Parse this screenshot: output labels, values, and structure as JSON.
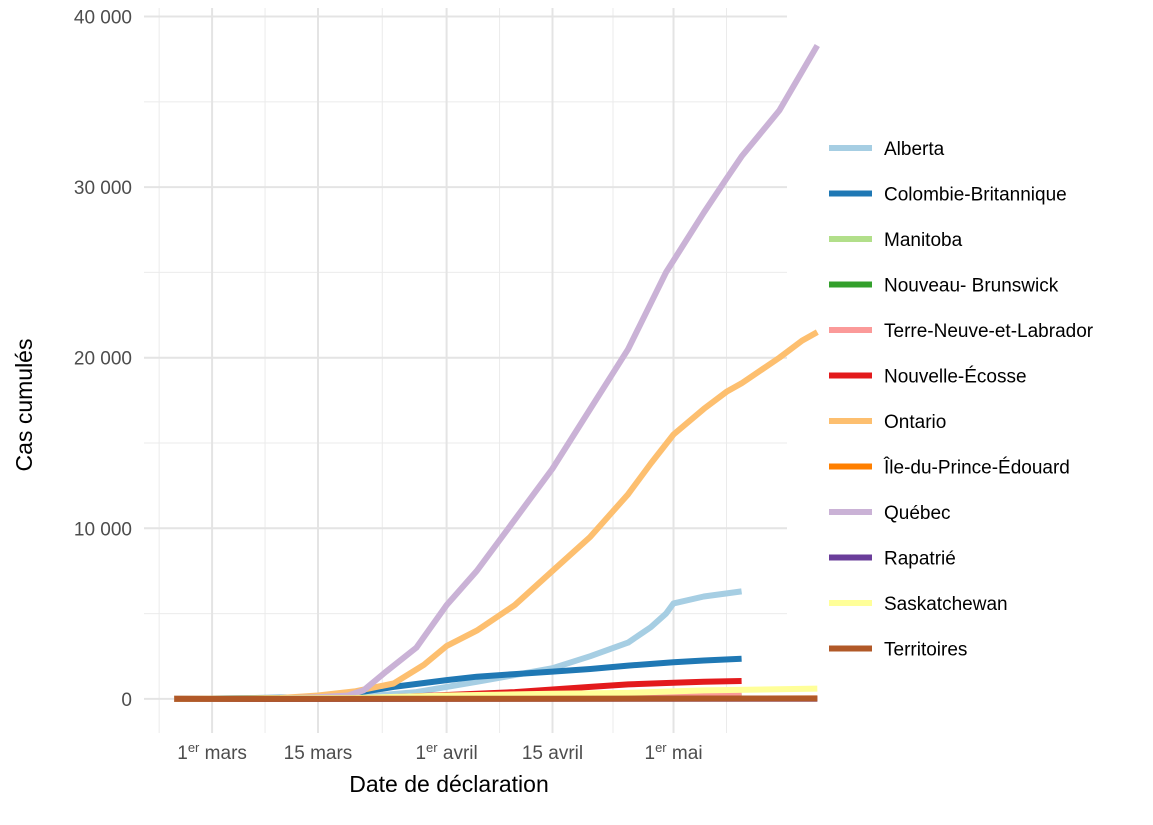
{
  "chart_data": {
    "type": "line",
    "title": "",
    "xlabel": "Date de déclaration",
    "ylabel": "Cas cumulés",
    "x_ticks": [
      {
        "date": "2020-03-01",
        "ordinal": "1",
        "sup": "er",
        "month": " mars"
      },
      {
        "date": "2020-03-15",
        "ordinal": "",
        "sup": "",
        "month": "15 mars"
      },
      {
        "date": "2020-04-01",
        "ordinal": "1",
        "sup": "er",
        "month": " avril"
      },
      {
        "date": "2020-04-15",
        "ordinal": "",
        "sup": "",
        "month": "15 avril"
      },
      {
        "date": "2020-05-01",
        "ordinal": "1",
        "sup": "er",
        "month": " mai"
      }
    ],
    "y_ticks": [
      {
        "value": 0,
        "label": "0"
      },
      {
        "value": 10000,
        "label": "10 000"
      },
      {
        "value": 20000,
        "label": "20 000"
      },
      {
        "value": 30000,
        "label": "30 000"
      },
      {
        "value": 40000,
        "label": "40 000"
      }
    ],
    "xlim": [
      "2020-02-21",
      "2020-05-16"
    ],
    "ylim": [
      -2000,
      40500
    ],
    "grid": true,
    "legend_position": "right",
    "series": [
      {
        "name": "Alberta",
        "color": "#a6cee3",
        "points": [
          [
            "2020-02-25",
            0
          ],
          [
            "2020-03-20",
            100
          ],
          [
            "2020-03-28",
            400
          ],
          [
            "2020-04-01",
            700
          ],
          [
            "2020-04-05",
            1000
          ],
          [
            "2020-04-10",
            1400
          ],
          [
            "2020-04-15",
            1800
          ],
          [
            "2020-04-20",
            2500
          ],
          [
            "2020-04-25",
            3300
          ],
          [
            "2020-04-28",
            4200
          ],
          [
            "2020-04-30",
            5000
          ],
          [
            "2020-05-01",
            5600
          ],
          [
            "2020-05-05",
            6000
          ],
          [
            "2020-05-10",
            6300
          ]
        ]
      },
      {
        "name": "Colombie-Britannique",
        "color": "#1f78b4",
        "points": [
          [
            "2020-02-25",
            0
          ],
          [
            "2020-03-15",
            100
          ],
          [
            "2020-03-20",
            350
          ],
          [
            "2020-03-25",
            700
          ],
          [
            "2020-04-01",
            1100
          ],
          [
            "2020-04-05",
            1300
          ],
          [
            "2020-04-10",
            1450
          ],
          [
            "2020-04-15",
            1600
          ],
          [
            "2020-04-20",
            1750
          ],
          [
            "2020-04-25",
            1950
          ],
          [
            "2020-05-01",
            2150
          ],
          [
            "2020-05-05",
            2250
          ],
          [
            "2020-05-10",
            2350
          ]
        ]
      },
      {
        "name": "Manitoba",
        "color": "#b2df8a",
        "points": [
          [
            "2020-02-25",
            0
          ],
          [
            "2020-03-25",
            30
          ],
          [
            "2020-04-05",
            200
          ],
          [
            "2020-04-15",
            250
          ],
          [
            "2020-05-01",
            280
          ],
          [
            "2020-05-10",
            290
          ]
        ]
      },
      {
        "name": "Nouveau- Brunswick",
        "color": "#33a02c",
        "points": [
          [
            "2020-02-25",
            0
          ],
          [
            "2020-03-25",
            30
          ],
          [
            "2020-04-05",
            100
          ],
          [
            "2020-04-15",
            115
          ],
          [
            "2020-05-10",
            120
          ]
        ]
      },
      {
        "name": "Terre-Neuve-et-Labrador",
        "color": "#fb9a99",
        "points": [
          [
            "2020-02-25",
            0
          ],
          [
            "2020-03-25",
            50
          ],
          [
            "2020-04-05",
            200
          ],
          [
            "2020-04-15",
            250
          ],
          [
            "2020-05-10",
            260
          ]
        ]
      },
      {
        "name": "Nouvelle-Écosse",
        "color": "#e31a1c",
        "points": [
          [
            "2020-02-25",
            0
          ],
          [
            "2020-03-20",
            20
          ],
          [
            "2020-03-28",
            150
          ],
          [
            "2020-04-05",
            300
          ],
          [
            "2020-04-10",
            400
          ],
          [
            "2020-04-15",
            550
          ],
          [
            "2020-04-20",
            700
          ],
          [
            "2020-04-25",
            850
          ],
          [
            "2020-05-01",
            950
          ],
          [
            "2020-05-05",
            1000
          ],
          [
            "2020-05-10",
            1050
          ]
        ]
      },
      {
        "name": "Ontario",
        "color": "#fdbf6f",
        "points": [
          [
            "2020-02-25",
            0
          ],
          [
            "2020-03-10",
            50
          ],
          [
            "2020-03-15",
            200
          ],
          [
            "2020-03-20",
            450
          ],
          [
            "2020-03-25",
            900
          ],
          [
            "2020-03-29",
            2000
          ],
          [
            "2020-04-01",
            3100
          ],
          [
            "2020-04-05",
            4000
          ],
          [
            "2020-04-10",
            5500
          ],
          [
            "2020-04-15",
            7500
          ],
          [
            "2020-04-20",
            9500
          ],
          [
            "2020-04-25",
            12000
          ],
          [
            "2020-04-28",
            13800
          ],
          [
            "2020-05-01",
            15500
          ],
          [
            "2020-05-05",
            17000
          ],
          [
            "2020-05-08",
            18000
          ],
          [
            "2020-05-10",
            18500
          ],
          [
            "2020-05-15",
            20000
          ],
          [
            "2020-05-18",
            21000
          ],
          [
            "2020-05-20",
            21500
          ]
        ]
      },
      {
        "name": "Île-du-Prince-Édouard",
        "color": "#ff7f00",
        "points": [
          [
            "2020-02-25",
            0
          ],
          [
            "2020-03-20",
            5
          ],
          [
            "2020-05-20",
            27
          ]
        ]
      },
      {
        "name": "Québec",
        "color": "#cab2d6",
        "points": [
          [
            "2020-02-25",
            0
          ],
          [
            "2020-03-10",
            20
          ],
          [
            "2020-03-15",
            100
          ],
          [
            "2020-03-19",
            200
          ],
          [
            "2020-03-21",
            500
          ],
          [
            "2020-03-24",
            1600
          ],
          [
            "2020-03-28",
            3000
          ],
          [
            "2020-04-01",
            5500
          ],
          [
            "2020-04-05",
            7500
          ],
          [
            "2020-04-10",
            10500
          ],
          [
            "2020-04-15",
            13500
          ],
          [
            "2020-04-20",
            17000
          ],
          [
            "2020-04-25",
            20500
          ],
          [
            "2020-04-30",
            25000
          ],
          [
            "2020-05-05",
            28500
          ],
          [
            "2020-05-08",
            30500
          ],
          [
            "2020-05-10",
            31800
          ],
          [
            "2020-05-15",
            34500
          ],
          [
            "2020-05-20",
            38300
          ]
        ]
      },
      {
        "name": "Rapatrié",
        "color": "#6a3d9a",
        "points": [
          [
            "2020-02-25",
            0
          ],
          [
            "2020-03-05",
            0
          ],
          [
            "2020-05-20",
            13
          ]
        ]
      },
      {
        "name": "Saskatchewan",
        "color": "#ffff99",
        "points": [
          [
            "2020-02-25",
            0
          ],
          [
            "2020-03-20",
            50
          ],
          [
            "2020-04-01",
            200
          ],
          [
            "2020-04-15",
            300
          ],
          [
            "2020-04-25",
            350
          ],
          [
            "2020-05-05",
            500
          ],
          [
            "2020-05-20",
            600
          ]
        ]
      },
      {
        "name": "Territoires",
        "color": "#b15928",
        "points": [
          [
            "2020-02-25",
            0
          ],
          [
            "2020-05-20",
            20
          ]
        ]
      }
    ]
  }
}
